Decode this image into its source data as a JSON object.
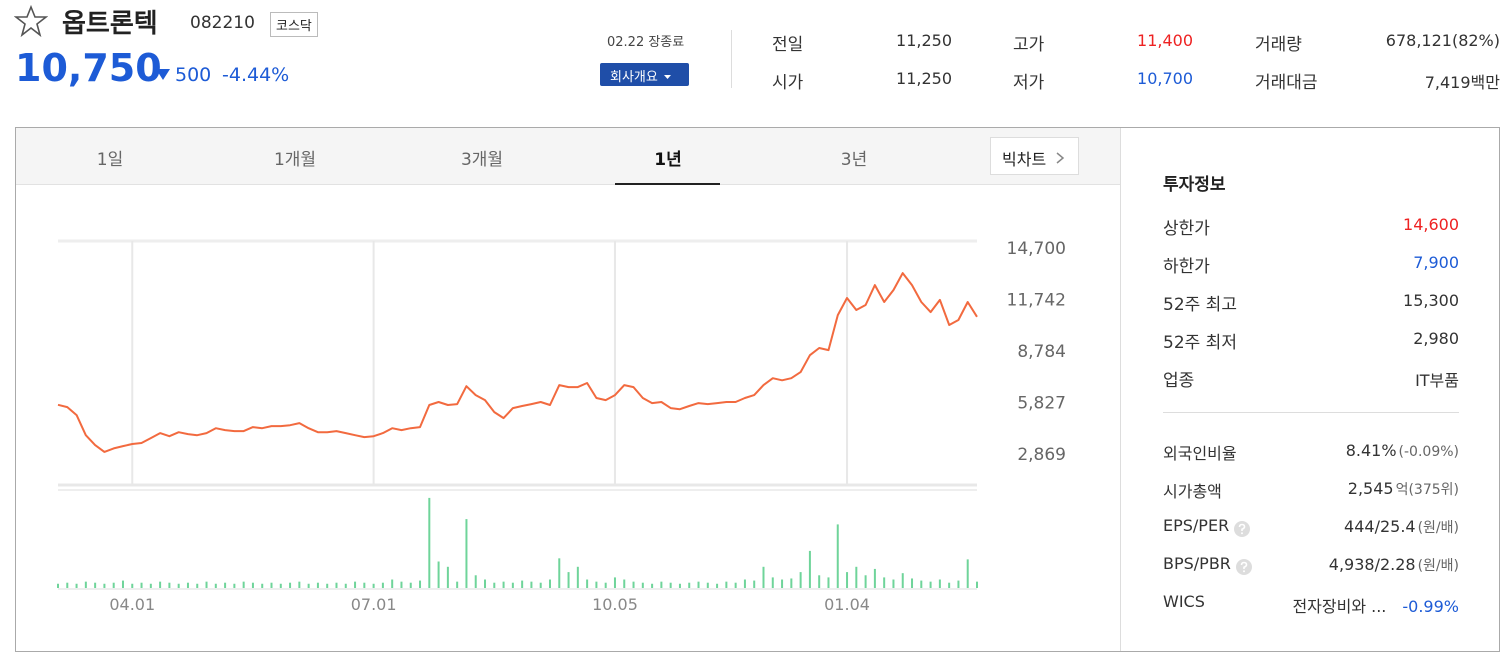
{
  "header": {
    "name": "옵트론텍",
    "code": "082210",
    "market": "코스닥",
    "price": "10,750",
    "change": "500",
    "change_rate": "-4.44%",
    "status": "02.22 장종료",
    "company_button": "회사개요"
  },
  "summary": [
    {
      "label": "전일",
      "value": "11,250"
    },
    {
      "label": "시가",
      "value": "11,250"
    },
    {
      "label": "고가",
      "value": "11,400"
    },
    {
      "label": "저가",
      "value": "10,700"
    },
    {
      "label": "거래량",
      "value": "678,121(82%)"
    },
    {
      "label": "거래대금",
      "value": "7,419",
      "unit": "백만"
    }
  ],
  "tabs": {
    "items": [
      "1일",
      "1개월",
      "3개월",
      "1년",
      "3년"
    ],
    "big_chart": "빅차트"
  },
  "invest": {
    "title": "투자정보",
    "rows": [
      {
        "label": "상한가",
        "value": "14,600"
      },
      {
        "label": "하한가",
        "value": "7,900"
      },
      {
        "label": "52주 최고",
        "value": "15,300"
      },
      {
        "label": "52주 최저",
        "value": "2,980"
      },
      {
        "label": "업종",
        "value": "IT부품"
      }
    ],
    "metrics": [
      {
        "label": "외국인비율",
        "value": "8.41%",
        "extra": "(-0.09%)"
      },
      {
        "label": "시가총액",
        "value": "2,545",
        "extra": "억(375위)"
      },
      {
        "label": "EPS/PER",
        "value": "444/25.4",
        "extra": "(원/배)"
      },
      {
        "label": "BPS/PBR",
        "value": "4,938/2.28",
        "extra": "(원/배)"
      },
      {
        "label": "WICS",
        "value": "전자장비와 ...",
        "extra": "-0.99%"
      }
    ]
  },
  "chart_data": [
    {
      "type": "line",
      "color": "#f26a3f",
      "categories": [
        null,
        null,
        null,
        null,
        null,
        null,
        null,
        null,
        "04.01",
        null,
        null,
        null,
        null,
        null,
        null,
        null,
        null,
        null,
        null,
        null,
        null,
        null,
        null,
        null,
        null,
        null,
        null,
        null,
        null,
        null,
        null,
        null,
        null,
        null,
        "07.01",
        null,
        null,
        null,
        null,
        null,
        null,
        null,
        null,
        null,
        null,
        null,
        null,
        null,
        null,
        null,
        null,
        null,
        null,
        null,
        null,
        null,
        null,
        null,
        null,
        null,
        "10.05",
        null,
        null,
        null,
        null,
        null,
        null,
        null,
        null,
        null,
        null,
        null,
        null,
        null,
        null,
        null,
        null,
        null,
        null,
        null,
        null,
        null,
        null,
        null,
        null,
        "01.04",
        null,
        null,
        null,
        null,
        null,
        null,
        null,
        null,
        null,
        null,
        null,
        null,
        null,
        null
      ],
      "values": [
        5700,
        5570,
        5110,
        3960,
        3390,
        3000,
        3200,
        3330,
        3450,
        3510,
        3790,
        4080,
        3900,
        4130,
        4020,
        3960,
        4080,
        4360,
        4250,
        4190,
        4190,
        4420,
        4360,
        4480,
        4480,
        4530,
        4650,
        4360,
        4130,
        4130,
        4190,
        4080,
        3960,
        3850,
        3900,
        4080,
        4360,
        4250,
        4360,
        4420,
        5690,
        5860,
        5690,
        5740,
        6770,
        6260,
        5970,
        5280,
        4940,
        5510,
        5630,
        5740,
        5860,
        5690,
        6830,
        6720,
        6720,
        6950,
        6090,
        5970,
        6260,
        6830,
        6720,
        6090,
        5800,
        5860,
        5510,
        5450,
        5630,
        5800,
        5740,
        5800,
        5860,
        5860,
        6090,
        6260,
        6830,
        7230,
        7110,
        7230,
        7580,
        8550,
        8960,
        8840,
        10850,
        11830,
        11140,
        11430,
        12570,
        11600,
        12290,
        13260,
        12570,
        11600,
        11020,
        11720,
        10280,
        10570,
        11600,
        10750
      ],
      "ylim": [
        1100,
        15100
      ],
      "yticks": [
        {
          "value": 14700,
          "label": "14,700"
        },
        {
          "value": 11742,
          "label": "11,742"
        },
        {
          "value": 8784,
          "label": "8,784"
        },
        {
          "value": 5827,
          "label": "5,827"
        },
        {
          "value": 2869,
          "label": "2,869"
        }
      ],
      "grid": "x"
    },
    {
      "type": "bar",
      "color": "#6fd49a",
      "values": [
        4,
        5,
        4,
        6,
        5,
        4,
        5,
        7,
        4,
        5,
        4,
        6,
        5,
        4,
        5,
        4,
        6,
        4,
        5,
        4,
        6,
        5,
        4,
        5,
        4,
        5,
        6,
        4,
        5,
        4,
        5,
        4,
        6,
        5,
        4,
        5,
        8,
        6,
        5,
        7,
        85,
        25,
        20,
        6,
        65,
        12,
        8,
        5,
        6,
        5,
        7,
        6,
        5,
        8,
        28,
        15,
        20,
        8,
        6,
        5,
        10,
        8,
        6,
        5,
        4,
        6,
        5,
        4,
        5,
        6,
        5,
        4,
        6,
        5,
        8,
        7,
        20,
        10,
        8,
        9,
        15,
        35,
        12,
        10,
        60,
        15,
        20,
        12,
        18,
        10,
        8,
        14,
        9,
        7,
        6,
        8,
        5,
        7,
        27,
        6
      ]
    }
  ]
}
